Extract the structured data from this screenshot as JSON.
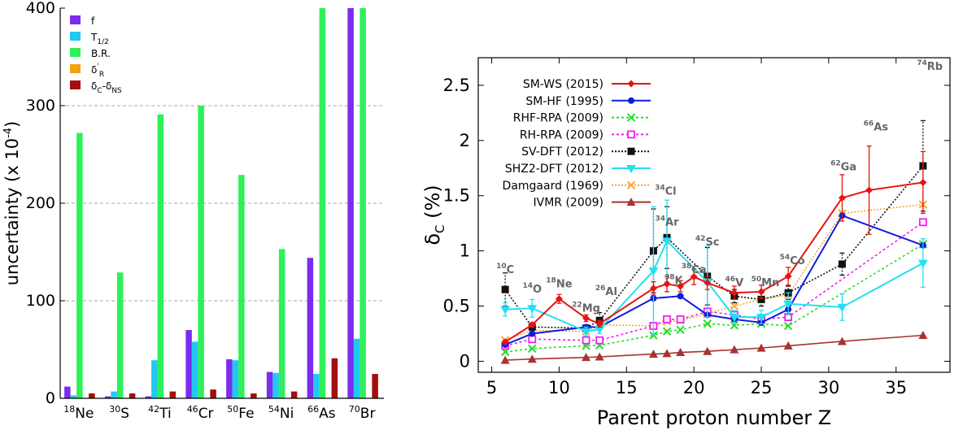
{
  "left_chart": {
    "ylabel_main": "uncertainty (x 10",
    "ylabel_sup": "-4",
    "ylabel_tail": ")",
    "legend": [
      {
        "main": "f",
        "sub": "",
        "sup": "",
        "color": "#7b2cf0"
      },
      {
        "main": "T",
        "sub": "1/2",
        "sup": "",
        "color": "#20c8f2"
      },
      {
        "main": "B.R.",
        "sub": "",
        "sup": "",
        "color": "#2ef05a"
      },
      {
        "main": "δ",
        "sub": "R",
        "sup": "'",
        "color": "#f5a00f"
      },
      {
        "main": "δ",
        "sub": "C",
        "sup": "",
        "tail": "-δ",
        "sub2": "NS",
        "color": "#a30e0e"
      }
    ]
  },
  "right_chart": {
    "xlabel": "Parent proton number Z",
    "ylabel_main": "δ",
    "ylabel_sub": "C",
    "ylabel_tail": " (%)",
    "legend": [
      {
        "label": "SM-WS (2015)",
        "color": "#e8130f",
        "marker": "diamond",
        "dash": ""
      },
      {
        "label": "SM-HF (1995)",
        "color": "#0b1de0",
        "marker": "circle",
        "dash": ""
      },
      {
        "label": "RHF-RPA (2009)",
        "color": "#28dd28",
        "marker": "cross",
        "dash": "3,3"
      },
      {
        "label": "RH-RPA (2009)",
        "color": "#f01ef0",
        "marker": "opensquare",
        "dash": "3,3"
      },
      {
        "label": "SV-DFT (2012)",
        "color": "#111111",
        "marker": "square",
        "dash": "2,2"
      },
      {
        "label": "SHZ2-DFT (2012)",
        "color": "#22e0f0",
        "marker": "triangledown",
        "dash": ""
      },
      {
        "label": "Damgaard (1969)",
        "color": "#f7a830",
        "marker": "cross",
        "dash": "2,2"
      },
      {
        "label": "IVMR (2009)",
        "color": "#a83232",
        "marker": "triangle",
        "dash": ""
      }
    ],
    "nuclei": [
      {
        "num": "10",
        "sym": "C",
        "x": 6,
        "y": 0.8
      },
      {
        "num": "14",
        "sym": "O",
        "x": 8,
        "y": 0.62
      },
      {
        "num": "18",
        "sym": "Ne",
        "x": 10,
        "y": 0.67
      },
      {
        "num": "22",
        "sym": "Mg",
        "x": 12,
        "y": 0.45
      },
      {
        "num": "26",
        "sym": "Al",
        "x": 13.5,
        "y": 0.6
      },
      {
        "num": "34",
        "sym": "Cl",
        "x": 17.9,
        "y": 1.51
      },
      {
        "num": "34",
        "sym": "Ar",
        "x": 18,
        "y": 1.23
      },
      {
        "num": "38",
        "sym": "K",
        "x": 18.5,
        "y": 0.7
      },
      {
        "num": "38",
        "sym": "Ca",
        "x": 20.0,
        "y": 0.8
      },
      {
        "num": "42",
        "sym": "Sc",
        "x": 21.0,
        "y": 1.05
      },
      {
        "num": "46",
        "sym": "V",
        "x": 23,
        "y": 0.68
      },
      {
        "num": "50",
        "sym": "Mn",
        "x": 25.3,
        "y": 0.68
      },
      {
        "num": "54",
        "sym": "Co",
        "x": 27.3,
        "y": 0.88
      },
      {
        "num": "62",
        "sym": "Ga",
        "x": 31.1,
        "y": 1.73
      },
      {
        "num": "66",
        "sym": "As",
        "x": 33.5,
        "y": 2.09
      },
      {
        "num": "74",
        "sym": "Rb",
        "x": 37.5,
        "y": 2.64
      }
    ]
  },
  "chart_data": [
    {
      "type": "bar",
      "ylabel": "uncertainty (x 10-4)",
      "ylim": [
        0,
        400
      ],
      "yticks": [
        0,
        100,
        200,
        300,
        400
      ],
      "grid": "horizontal dashed",
      "legend_position": "top-left",
      "categories": [
        {
          "num": "18",
          "sym": "Ne"
        },
        {
          "num": "30",
          "sym": "S"
        },
        {
          "num": "42",
          "sym": "Ti"
        },
        {
          "num": "46",
          "sym": "Cr"
        },
        {
          "num": "50",
          "sym": "Fe"
        },
        {
          "num": "54",
          "sym": "Ni"
        },
        {
          "num": "66",
          "sym": "As"
        },
        {
          "num": "70",
          "sym": "Br"
        }
      ],
      "series": [
        {
          "name": "f",
          "color": "#7b2cf0",
          "values": [
            12,
            2,
            2,
            70,
            40,
            27,
            144,
            400
          ]
        },
        {
          "name": "T1/2",
          "color": "#20c8f2",
          "values": [
            3,
            7,
            39,
            58,
            39,
            26,
            25,
            61
          ]
        },
        {
          "name": "B.R.",
          "color": "#2ef05a",
          "values": [
            272,
            129,
            291,
            300,
            229,
            153,
            400,
            400
          ]
        },
        {
          "name": "δ'R",
          "color": "#f5a00f",
          "values": [
            0,
            0,
            0,
            0,
            0,
            0,
            0,
            0
          ]
        },
        {
          "name": "δC-δNS",
          "color": "#a30e0e",
          "values": [
            5,
            5,
            7,
            9,
            5,
            7,
            41,
            25
          ]
        }
      ]
    },
    {
      "type": "line",
      "xlabel": "Parent proton number Z",
      "ylabel": "δC (%)",
      "xlim": [
        4,
        39
      ],
      "ylim": [
        -0.1,
        2.75
      ],
      "xticks": [
        5,
        10,
        15,
        20,
        25,
        30,
        35
      ],
      "yticks": [
        0,
        0.5,
        1,
        1.5,
        2,
        2.5
      ],
      "legend_position": "top-left",
      "series": [
        {
          "name": "SM-WS (2015)",
          "x": [
            6,
            8,
            10,
            12,
            13,
            17,
            18,
            19,
            20,
            21,
            23,
            25,
            27,
            31,
            33,
            37
          ],
          "y": [
            0.175,
            0.33,
            0.565,
            0.39,
            0.34,
            0.66,
            0.7,
            0.68,
            0.765,
            0.71,
            0.62,
            0.63,
            0.77,
            1.48,
            1.55,
            1.62
          ],
          "err": [
            0.015,
            0.02,
            0.04,
            0.03,
            0.03,
            0.06,
            0.07,
            0.05,
            0.07,
            0.06,
            0.06,
            0.06,
            0.08,
            0.21,
            0.4,
            0.28
          ]
        },
        {
          "name": "SM-HF (1995)",
          "x": [
            6,
            8,
            12,
            13,
            17,
            19,
            21,
            23,
            25,
            27,
            31,
            37
          ],
          "y": [
            0.15,
            0.25,
            0.31,
            0.31,
            0.57,
            0.59,
            0.42,
            0.38,
            0.35,
            0.47,
            1.32,
            1.05
          ]
        },
        {
          "name": "RHF-RPA (2009)",
          "x": [
            6,
            8,
            12,
            13,
            17,
            18,
            19,
            21,
            23,
            25,
            27,
            37
          ],
          "y": [
            0.085,
            0.115,
            0.14,
            0.145,
            0.235,
            0.27,
            0.285,
            0.34,
            0.325,
            0.34,
            0.32,
            1.06
          ]
        },
        {
          "name": "RH-RPA (2009)",
          "x": [
            6,
            8,
            12,
            13,
            17,
            18,
            19,
            21,
            23,
            25,
            27,
            37
          ],
          "y": [
            0.14,
            0.2,
            0.19,
            0.19,
            0.32,
            0.38,
            0.38,
            0.45,
            0.42,
            0.38,
            0.4,
            1.26
          ]
        },
        {
          "name": "SV-DFT (2012)",
          "x": [
            6,
            8,
            12,
            13,
            17,
            18,
            21,
            23,
            25,
            27,
            31,
            37
          ],
          "y": [
            0.65,
            0.31,
            0.3,
            0.37,
            1.0,
            1.12,
            0.77,
            0.59,
            0.56,
            0.62,
            0.88,
            1.77
          ],
          "err": [
            0.15,
            0.02,
            0.02,
            0.07,
            0.38,
            0.28,
            0.26,
            0.06,
            0.06,
            0.06,
            0.1,
            0.41
          ]
        },
        {
          "name": "SHZ2-DFT (2012)",
          "x": [
            6,
            8,
            12,
            13,
            17,
            18,
            21,
            23,
            25,
            27,
            31,
            37
          ],
          "y": [
            0.47,
            0.48,
            0.27,
            0.29,
            0.82,
            1.09,
            0.72,
            0.4,
            0.4,
            0.52,
            0.49,
            0.89
          ],
          "err": [
            0.06,
            0.08,
            0.04,
            0.04,
            0.58,
            0.37,
            0.32,
            0.06,
            0.06,
            0.1,
            0.12,
            0.22
          ]
        },
        {
          "name": "Damgaard (1969)",
          "x": [
            6,
            8,
            12,
            13,
            17,
            18,
            19,
            21,
            23,
            25,
            27,
            31,
            37
          ],
          "y": [
            0.19,
            0.28,
            0.27,
            0.33,
            0.32,
            0.36,
            0.37,
            0.43,
            0.5,
            0.56,
            0.6,
            1.34,
            1.42
          ]
        },
        {
          "name": "IVMR (2009)",
          "x": [
            6,
            8,
            12,
            13,
            17,
            18,
            19,
            21,
            23,
            25,
            27,
            31,
            37
          ],
          "y": [
            0.01,
            0.02,
            0.035,
            0.04,
            0.065,
            0.07,
            0.08,
            0.09,
            0.105,
            0.12,
            0.14,
            0.18,
            0.235
          ]
        }
      ]
    }
  ]
}
